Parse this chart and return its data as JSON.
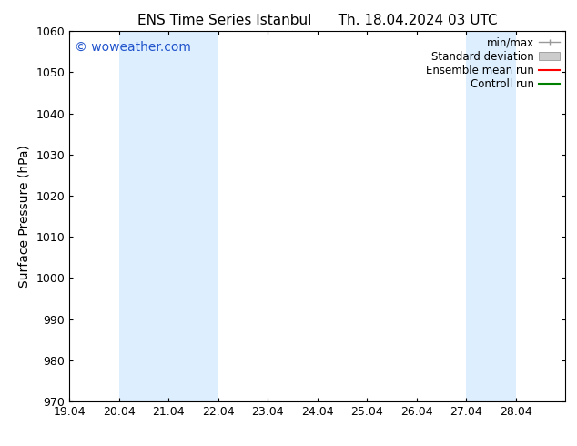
{
  "title_left": "ENS Time Series Istanbul",
  "title_right": "Th. 18.04.2024 03 UTC",
  "ylabel": "Surface Pressure (hPa)",
  "ylim": [
    970,
    1060
  ],
  "yticks": [
    970,
    980,
    990,
    1000,
    1010,
    1020,
    1030,
    1040,
    1050,
    1060
  ],
  "xlim": [
    0,
    10
  ],
  "xtick_labels": [
    "19.04",
    "20.04",
    "21.04",
    "22.04",
    "23.04",
    "24.04",
    "25.04",
    "26.04",
    "27.04",
    "28.04"
  ],
  "xtick_positions": [
    0,
    1,
    2,
    3,
    4,
    5,
    6,
    7,
    8,
    9
  ],
  "shaded_bands": [
    {
      "x_start": 1,
      "x_end": 3,
      "color": "#ddeeff"
    },
    {
      "x_start": 8,
      "x_end": 9,
      "color": "#ddeeff"
    }
  ],
  "legend_items": [
    {
      "label": "min/max",
      "type": "minmax",
      "color": "#999999"
    },
    {
      "label": "Standard deviation",
      "type": "stddev",
      "color": "#cccccc"
    },
    {
      "label": "Ensemble mean run",
      "type": "line",
      "color": "#ff0000"
    },
    {
      "label": "Controll run",
      "type": "line",
      "color": "#008000"
    }
  ],
  "watermark": "© woweather.com",
  "watermark_color": "#2255cc",
  "bg_color": "#ffffff",
  "plot_bg_color": "#ffffff",
  "border_color": "#000000",
  "tick_color": "#000000",
  "title_fontsize": 11,
  "axis_label_fontsize": 10,
  "tick_fontsize": 9,
  "legend_fontsize": 8.5,
  "watermark_fontsize": 10
}
